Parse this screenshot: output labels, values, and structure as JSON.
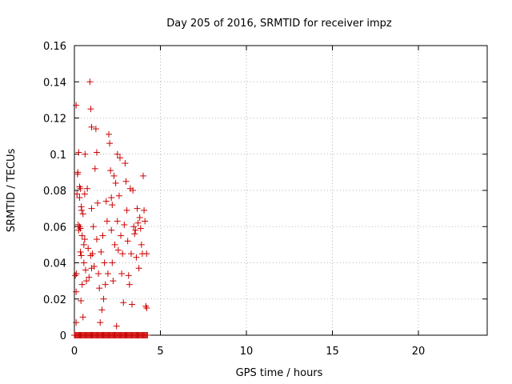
{
  "chart_data": {
    "type": "scatter",
    "title": "Day 205 of 2016, SRMTID for receiver impz",
    "xlabel": "GPS time / hours",
    "ylabel": "SRMTID / TECUs",
    "xlim": [
      0,
      24
    ],
    "ylim": [
      0,
      0.16
    ],
    "xticks": [
      0,
      5,
      10,
      15,
      20
    ],
    "xtick_labels": [
      "0",
      "5",
      "10",
      "15",
      "20"
    ],
    "yticks": [
      0,
      0.02,
      0.04,
      0.06,
      0.08,
      0.1,
      0.12,
      0.14,
      0.16
    ],
    "ytick_labels": [
      "0",
      "0.02",
      "0.04",
      "0.06",
      "0.08",
      "0.1",
      "0.12",
      "0.14",
      "0.16"
    ],
    "grid": true,
    "marker": "+",
    "marker_color": "#cc0000",
    "series": [
      {
        "name": "SRMTID",
        "points": [
          [
            0.1,
            0.127
          ],
          [
            0.05,
            0.033
          ],
          [
            0.1,
            0.024
          ],
          [
            0.1,
            0.007
          ],
          [
            0.12,
            0.034
          ],
          [
            0.15,
            0.078
          ],
          [
            0.18,
            0.089
          ],
          [
            0.2,
            0.09
          ],
          [
            0.22,
            0.061
          ],
          [
            0.25,
            0.101
          ],
          [
            0.25,
            0.058
          ],
          [
            0.3,
            0.082
          ],
          [
            0.3,
            0.076
          ],
          [
            0.3,
            0.06
          ],
          [
            0.35,
            0.081
          ],
          [
            0.35,
            0.059
          ],
          [
            0.35,
            0.046
          ],
          [
            0.38,
            0.019
          ],
          [
            0.4,
            0.071
          ],
          [
            0.4,
            0.044
          ],
          [
            0.42,
            0.069
          ],
          [
            0.45,
            0.055
          ],
          [
            0.45,
            0.028
          ],
          [
            0.5,
            0.067
          ],
          [
            0.5,
            0.01
          ],
          [
            0.55,
            0.05
          ],
          [
            0.55,
            0.04
          ],
          [
            0.6,
            0.078
          ],
          [
            0.6,
            0.053
          ],
          [
            0.62,
            0.1
          ],
          [
            0.65,
            0.036
          ],
          [
            0.7,
            0.03
          ],
          [
            0.75,
            0.081
          ],
          [
            0.8,
            0.048
          ],
          [
            0.85,
            0.032
          ],
          [
            0.9,
            0.14
          ],
          [
            0.95,
            0.125
          ],
          [
            0.95,
            0.044
          ],
          [
            1.0,
            0.115
          ],
          [
            1.0,
            0.07
          ],
          [
            1.0,
            0.037
          ],
          [
            1.05,
            0.045
          ],
          [
            1.1,
            0.06
          ],
          [
            1.15,
            0.038
          ],
          [
            1.2,
            0.092
          ],
          [
            1.25,
            0.114
          ],
          [
            1.3,
            0.101
          ],
          [
            1.3,
            0.053
          ],
          [
            1.35,
            0.073
          ],
          [
            1.4,
            0.034
          ],
          [
            1.45,
            0.026
          ],
          [
            1.5,
            0.007
          ],
          [
            1.55,
            0.046
          ],
          [
            1.6,
            0.014
          ],
          [
            1.65,
            0.055
          ],
          [
            1.7,
            0.02
          ],
          [
            1.75,
            0.04
          ],
          [
            1.8,
            0.028
          ],
          [
            1.85,
            0.074
          ],
          [
            1.9,
            0.063
          ],
          [
            1.95,
            0.034
          ],
          [
            2.0,
            0.111
          ],
          [
            2.05,
            0.106
          ],
          [
            2.1,
            0.091
          ],
          [
            2.15,
            0.076
          ],
          [
            2.15,
            0.058
          ],
          [
            2.2,
            0.072
          ],
          [
            2.2,
            0.04
          ],
          [
            2.25,
            0.03
          ],
          [
            2.3,
            0.088
          ],
          [
            2.35,
            0.05
          ],
          [
            2.4,
            0.084
          ],
          [
            2.45,
            0.005
          ],
          [
            2.5,
            0.1
          ],
          [
            2.5,
            0.063
          ],
          [
            2.55,
            0.047
          ],
          [
            2.6,
            0.077
          ],
          [
            2.65,
            0.098
          ],
          [
            2.7,
            0.055
          ],
          [
            2.75,
            0.034
          ],
          [
            2.8,
            0.045
          ],
          [
            2.85,
            0.018
          ],
          [
            2.9,
            0.061
          ],
          [
            2.95,
            0.095
          ],
          [
            3.0,
            0.085
          ],
          [
            3.05,
            0.069
          ],
          [
            3.1,
            0.052
          ],
          [
            3.15,
            0.033
          ],
          [
            3.2,
            0.028
          ],
          [
            3.25,
            0.081
          ],
          [
            3.3,
            0.045
          ],
          [
            3.35,
            0.017
          ],
          [
            3.4,
            0.08
          ],
          [
            3.45,
            0.06
          ],
          [
            3.5,
            0.056
          ],
          [
            3.55,
            0.058
          ],
          [
            3.6,
            0.043
          ],
          [
            3.65,
            0.07
          ],
          [
            3.7,
            0.062
          ],
          [
            3.75,
            0.037
          ],
          [
            3.8,
            0.065
          ],
          [
            3.85,
            0.059
          ],
          [
            3.9,
            0.05
          ],
          [
            3.95,
            0.045
          ],
          [
            4.0,
            0.088
          ],
          [
            4.05,
            0.069
          ],
          [
            4.1,
            0.063
          ],
          [
            4.15,
            0.016
          ],
          [
            4.2,
            0.015
          ],
          [
            4.2,
            0.045
          ]
        ],
        "zero_band_x": [
          0,
          4.25
        ]
      }
    ]
  }
}
